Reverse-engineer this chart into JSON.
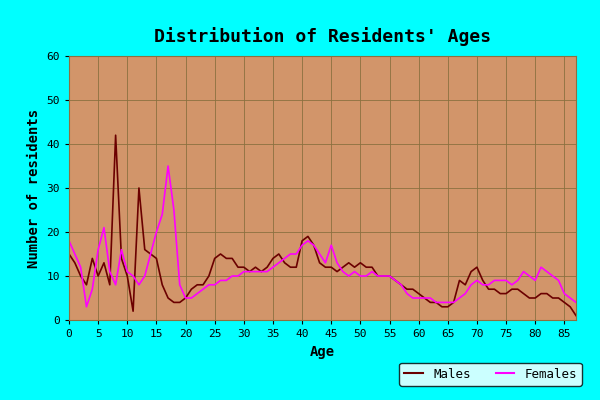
{
  "title": "Distribution of Residents' Ages",
  "xlabel": "Age",
  "ylabel": "Number of residents",
  "background_color": "#00FFFF",
  "plot_bg_color": "#D2956A",
  "grid_color": "#8B7040",
  "xlim": [
    0,
    87
  ],
  "ylim": [
    0,
    60
  ],
  "xticks": [
    0,
    5,
    10,
    15,
    20,
    25,
    30,
    35,
    40,
    45,
    50,
    55,
    60,
    65,
    70,
    75,
    80,
    85
  ],
  "yticks": [
    0,
    10,
    20,
    30,
    40,
    50,
    60
  ],
  "males_color": "#6B0000",
  "females_color": "#FF00FF",
  "males_x": [
    0,
    1,
    2,
    3,
    4,
    5,
    6,
    7,
    8,
    9,
    10,
    11,
    12,
    13,
    14,
    15,
    16,
    17,
    18,
    19,
    20,
    21,
    22,
    23,
    24,
    25,
    26,
    27,
    28,
    29,
    30,
    31,
    32,
    33,
    34,
    35,
    36,
    37,
    38,
    39,
    40,
    41,
    42,
    43,
    44,
    45,
    46,
    47,
    48,
    49,
    50,
    51,
    52,
    53,
    54,
    55,
    56,
    57,
    58,
    59,
    60,
    61,
    62,
    63,
    64,
    65,
    66,
    67,
    68,
    69,
    70,
    71,
    72,
    73,
    74,
    75,
    76,
    77,
    78,
    79,
    80,
    81,
    82,
    83,
    84,
    85,
    86,
    87
  ],
  "males_y": [
    15,
    13,
    10,
    8,
    14,
    10,
    13,
    8,
    42,
    14,
    10,
    2,
    30,
    16,
    15,
    14,
    8,
    5,
    4,
    4,
    5,
    7,
    8,
    8,
    10,
    14,
    15,
    14,
    14,
    12,
    12,
    11,
    12,
    11,
    12,
    14,
    15,
    13,
    12,
    12,
    18,
    19,
    17,
    13,
    12,
    12,
    11,
    12,
    13,
    12,
    13,
    12,
    12,
    10,
    10,
    10,
    9,
    8,
    7,
    7,
    6,
    5,
    4,
    4,
    3,
    3,
    4,
    9,
    8,
    11,
    12,
    9,
    7,
    7,
    6,
    6,
    7,
    7,
    6,
    5,
    5,
    6,
    6,
    5,
    5,
    4,
    3,
    1
  ],
  "females_x": [
    0,
    1,
    2,
    3,
    4,
    5,
    6,
    7,
    8,
    9,
    10,
    11,
    12,
    13,
    14,
    15,
    16,
    17,
    18,
    19,
    20,
    21,
    22,
    23,
    24,
    25,
    26,
    27,
    28,
    29,
    30,
    31,
    32,
    33,
    34,
    35,
    36,
    37,
    38,
    39,
    40,
    41,
    42,
    43,
    44,
    45,
    46,
    47,
    48,
    49,
    50,
    51,
    52,
    53,
    54,
    55,
    56,
    57,
    58,
    59,
    60,
    61,
    62,
    63,
    64,
    65,
    66,
    67,
    68,
    69,
    70,
    71,
    72,
    73,
    74,
    75,
    76,
    77,
    78,
    79,
    80,
    81,
    82,
    83,
    84,
    85,
    86,
    87
  ],
  "females_y": [
    18,
    15,
    12,
    3,
    7,
    16,
    21,
    11,
    8,
    16,
    11,
    10,
    8,
    10,
    15,
    20,
    24,
    35,
    25,
    8,
    5,
    5,
    6,
    7,
    8,
    8,
    9,
    9,
    10,
    10,
    11,
    11,
    11,
    11,
    11,
    12,
    13,
    14,
    15,
    15,
    17,
    18,
    17,
    15,
    13,
    17,
    13,
    11,
    10,
    11,
    10,
    10,
    11,
    10,
    10,
    10,
    9,
    8,
    6,
    5,
    5,
    5,
    5,
    4,
    4,
    4,
    4,
    5,
    6,
    8,
    9,
    8,
    8,
    9,
    9,
    9,
    8,
    9,
    11,
    10,
    9,
    12,
    11,
    10,
    9,
    6,
    5,
    4
  ],
  "title_fontsize": 13,
  "label_fontsize": 10,
  "tick_fontsize": 8,
  "legend_fontsize": 9
}
